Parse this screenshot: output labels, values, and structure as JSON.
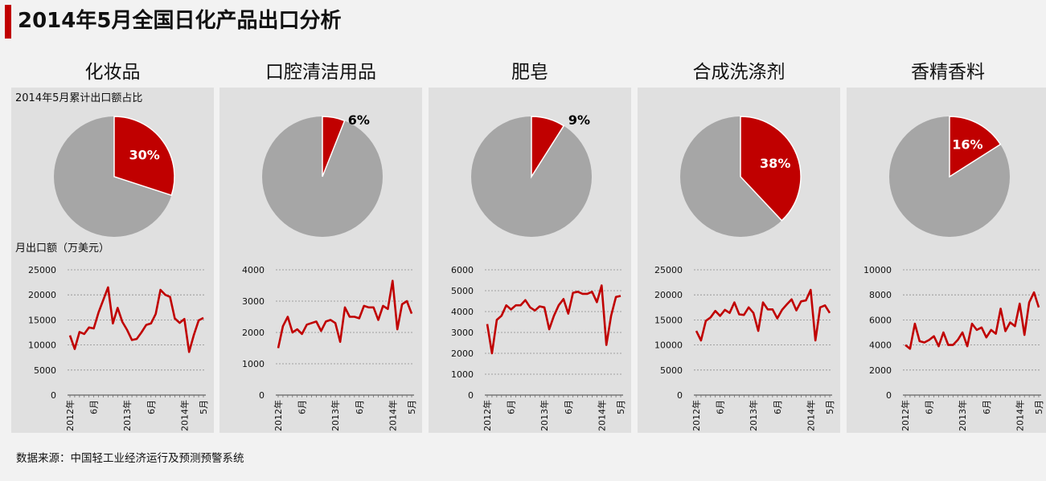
{
  "header": {
    "title": "2014年5月全国日化产品出口分析"
  },
  "captions": {
    "pie": "2014年5月累计出口额占比",
    "line": "月出口额（万美元）"
  },
  "source": "数据来源：中国轻工业经济运行及预测预警系统",
  "colors": {
    "accent": "#c00000",
    "rest": "#a6a6a6",
    "line": "#c00000"
  },
  "chart_data": [
    {
      "title": "化妆品",
      "pie": {
        "type": "pie",
        "share": 30,
        "label": "30%",
        "label_color": "#ffffff"
      },
      "line": {
        "type": "line",
        "ylim": [
          0,
          25000
        ],
        "yticks": [
          0,
          5000,
          10000,
          15000,
          20000,
          25000
        ],
        "ytick_labels": [
          "0",
          "5000",
          "10000",
          "15000",
          "20000",
          "25000"
        ],
        "xticks": [
          {
            "index": 0,
            "label": "2012年"
          },
          {
            "index": 5,
            "label": "6月"
          },
          {
            "index": 12,
            "label": "2013年"
          },
          {
            "index": 17,
            "label": "6月"
          },
          {
            "index": 24,
            "label": "2014年"
          },
          {
            "index": 28,
            "label": "5月"
          }
        ],
        "values": [
          11900,
          9200,
          12600,
          12200,
          13500,
          13300,
          16500,
          19000,
          21500,
          14300,
          17400,
          14600,
          13000,
          11000,
          11200,
          12500,
          14000,
          14300,
          16200,
          21000,
          20000,
          19600,
          15300,
          14400,
          15200,
          8600,
          12000,
          14900,
          15400
        ]
      }
    },
    {
      "title": "口腔清洁用品",
      "pie": {
        "type": "pie",
        "share": 6,
        "label": "6%",
        "label_color": "#000000"
      },
      "line": {
        "type": "line",
        "ylim": [
          0,
          4000
        ],
        "yticks": [
          0,
          1000,
          2000,
          3000,
          4000
        ],
        "ytick_labels": [
          "0",
          "1000",
          "2000",
          "3000",
          "4000"
        ],
        "xticks": [
          {
            "index": 0,
            "label": "2012年"
          },
          {
            "index": 5,
            "label": "6月"
          },
          {
            "index": 12,
            "label": "2013年"
          },
          {
            "index": 17,
            "label": "6月"
          },
          {
            "index": 24,
            "label": "2014年"
          },
          {
            "index": 28,
            "label": "5月"
          }
        ],
        "values": [
          1500,
          2200,
          2500,
          2000,
          2100,
          1950,
          2250,
          2300,
          2350,
          2050,
          2350,
          2400,
          2300,
          1700,
          2800,
          2500,
          2500,
          2450,
          2850,
          2800,
          2800,
          2400,
          2850,
          2750,
          3650,
          2100,
          2900,
          3000,
          2600
        ]
      }
    },
    {
      "title": "肥皂",
      "pie": {
        "type": "pie",
        "share": 9,
        "label": "9%",
        "label_color": "#000000"
      },
      "line": {
        "type": "line",
        "ylim": [
          0,
          6000
        ],
        "yticks": [
          0,
          1000,
          2000,
          3000,
          4000,
          5000,
          6000
        ],
        "ytick_labels": [
          "0",
          "1000",
          "2000",
          "3000",
          "4000",
          "5000",
          "6000"
        ],
        "xticks": [
          {
            "index": 0,
            "label": "2012年"
          },
          {
            "index": 5,
            "label": "6月"
          },
          {
            "index": 12,
            "label": "2013年"
          },
          {
            "index": 17,
            "label": "6月"
          },
          {
            "index": 24,
            "label": "2014年"
          },
          {
            "index": 28,
            "label": "5月"
          }
        ],
        "values": [
          3400,
          2000,
          3600,
          3800,
          4300,
          4100,
          4300,
          4300,
          4550,
          4200,
          4050,
          4250,
          4200,
          3150,
          3800,
          4300,
          4600,
          3900,
          4900,
          4950,
          4850,
          4850,
          4950,
          4450,
          5250,
          2400,
          3800,
          4700,
          4750
        ]
      }
    },
    {
      "title": "合成洗涤剂",
      "pie": {
        "type": "pie",
        "share": 38,
        "label": "38%",
        "label_color": "#ffffff"
      },
      "line": {
        "type": "line",
        "ylim": [
          0,
          25000
        ],
        "yticks": [
          0,
          5000,
          10000,
          15000,
          20000,
          25000
        ],
        "ytick_labels": [
          "0",
          "5000",
          "10000",
          "15000",
          "20000",
          "25000"
        ],
        "xticks": [
          {
            "index": 0,
            "label": "2012年"
          },
          {
            "index": 5,
            "label": "6月"
          },
          {
            "index": 12,
            "label": "2013年"
          },
          {
            "index": 17,
            "label": "6月"
          },
          {
            "index": 24,
            "label": "2014年"
          },
          {
            "index": 28,
            "label": "5月"
          }
        ],
        "values": [
          12800,
          10900,
          14800,
          15500,
          16800,
          15800,
          17000,
          16400,
          18500,
          16100,
          16000,
          17500,
          16400,
          12800,
          18500,
          17100,
          17100,
          15300,
          17000,
          18100,
          19100,
          16900,
          18700,
          18900,
          21000,
          10900,
          17500,
          17900,
          16400
        ]
      }
    },
    {
      "title": "香精香料",
      "pie": {
        "type": "pie",
        "share": 16,
        "label": "16%",
        "label_color": "#ffffff"
      },
      "line": {
        "type": "line",
        "ylim": [
          0,
          10000
        ],
        "yticks": [
          0,
          2000,
          4000,
          6000,
          8000,
          10000
        ],
        "ytick_labels": [
          "0",
          "2000",
          "4000",
          "6000",
          "8000",
          "10000"
        ],
        "xticks": [
          {
            "index": 0,
            "label": "2012年"
          },
          {
            "index": 5,
            "label": "6月"
          },
          {
            "index": 12,
            "label": "2013年"
          },
          {
            "index": 17,
            "label": "6月"
          },
          {
            "index": 24,
            "label": "2014年"
          },
          {
            "index": 28,
            "label": "5月"
          }
        ],
        "values": [
          4000,
          3700,
          5700,
          4300,
          4200,
          4400,
          4700,
          3900,
          5000,
          4000,
          4000,
          4400,
          5000,
          3900,
          5700,
          5200,
          5400,
          4600,
          5200,
          4900,
          6900,
          5100,
          5800,
          5500,
          7300,
          4800,
          7400,
          8200,
          7000
        ]
      }
    }
  ]
}
